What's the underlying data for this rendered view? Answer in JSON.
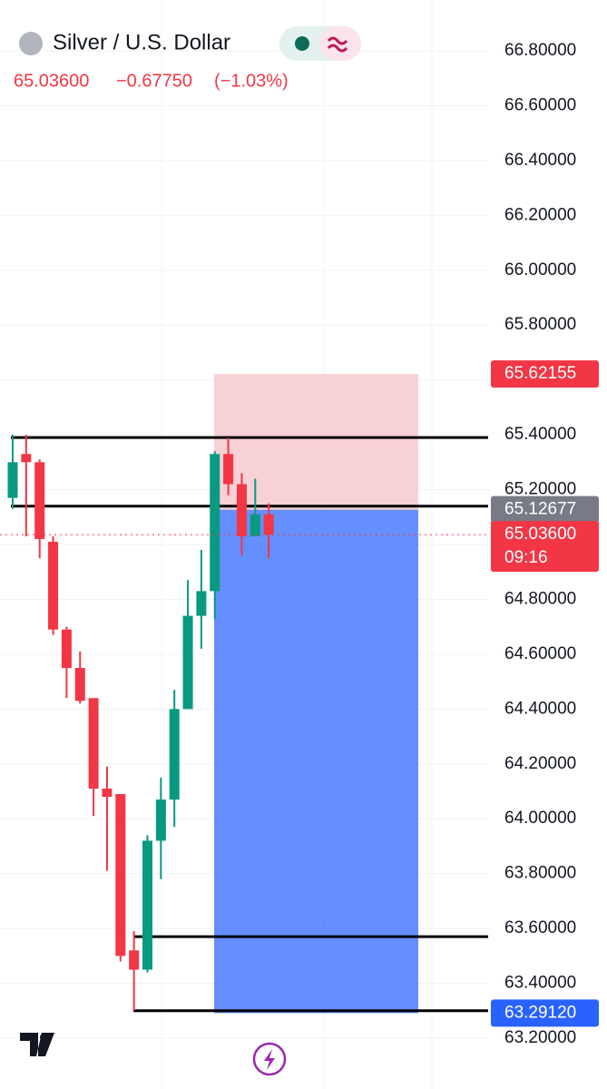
{
  "header": {
    "title": "Silver / U.S. Dollar",
    "last": "65.03600",
    "change": "−0.67750",
    "change_pct": "(−1.03%)"
  },
  "chart_data": {
    "type": "candlestick",
    "categories": [
      null,
      null,
      null,
      null,
      null,
      null,
      null,
      null,
      null,
      null,
      null,
      null,
      null,
      null,
      null,
      null,
      null,
      null,
      null,
      null
    ],
    "open": [
      65.17,
      65.33,
      65.3,
      65.01,
      64.69,
      64.55,
      64.44,
      64.11,
      64.09,
      63.52,
      63.45,
      63.92,
      64.07,
      64.4,
      64.74,
      64.83,
      65.33,
      65.22,
      65.03,
      65.11
    ],
    "high": [
      65.4,
      65.4,
      65.31,
      65.03,
      64.7,
      64.61,
      64.44,
      64.19,
      64.09,
      63.59,
      63.94,
      64.15,
      64.47,
      64.87,
      64.98,
      65.34,
      65.39,
      65.26,
      65.24,
      65.15
    ],
    "low": [
      65.13,
      65.03,
      64.95,
      64.67,
      64.44,
      64.42,
      64.01,
      63.81,
      63.48,
      63.3,
      63.44,
      63.78,
      63.97,
      64.4,
      64.62,
      64.73,
      65.18,
      64.96,
      65.03,
      64.95
    ],
    "close": [
      65.3,
      65.3,
      65.02,
      64.69,
      64.55,
      64.43,
      64.11,
      64.08,
      63.5,
      63.45,
      63.92,
      64.07,
      64.4,
      64.74,
      64.83,
      65.33,
      65.22,
      65.03,
      65.11,
      65.036
    ],
    "up_color": "#089981",
    "down_color": "#f23645",
    "ylim": [
      63.2,
      66.8
    ],
    "yticks": [
      {
        "value": 63.2,
        "label": "63.20000"
      },
      {
        "value": 63.4,
        "label": "63.40000"
      },
      {
        "value": 63.6,
        "label": "63.60000"
      },
      {
        "value": 63.8,
        "label": "63.80000"
      },
      {
        "value": 64.0,
        "label": "64.00000"
      },
      {
        "value": 64.2,
        "label": "64.20000"
      },
      {
        "value": 64.4,
        "label": "64.40000"
      },
      {
        "value": 64.6,
        "label": "64.60000"
      },
      {
        "value": 64.8,
        "label": "64.80000"
      },
      {
        "value": 65.0,
        "label": "65.00000"
      },
      {
        "value": 65.2,
        "label": "65.20000"
      },
      {
        "value": 65.4,
        "label": "65.40000"
      },
      {
        "value": 65.6,
        "label": "65.60000"
      },
      {
        "value": 65.8,
        "label": "65.80000"
      },
      {
        "value": 66.0,
        "label": "66.00000"
      },
      {
        "value": 66.2,
        "label": "66.20000"
      },
      {
        "value": 66.4,
        "label": "66.40000"
      },
      {
        "value": 66.6,
        "label": "66.60000"
      },
      {
        "value": 66.8,
        "label": "66.80000"
      }
    ],
    "levels": [
      65.39,
      65.14,
      63.57,
      63.3
    ],
    "position": {
      "stop": 65.62155,
      "entry": 65.12677,
      "target": 63.2912
    },
    "price_labels": [
      {
        "value": 65.62155,
        "label": "65.62155",
        "color": "#f23645"
      },
      {
        "value": 65.12677,
        "label": "65.12677",
        "color": "#787b86"
      },
      {
        "value": 65.036,
        "label": "65.03600",
        "color": "#f23645"
      },
      {
        "value": 63.2912,
        "label": "63.29120",
        "color": "#2962ff"
      }
    ],
    "countdown": "09:16"
  }
}
